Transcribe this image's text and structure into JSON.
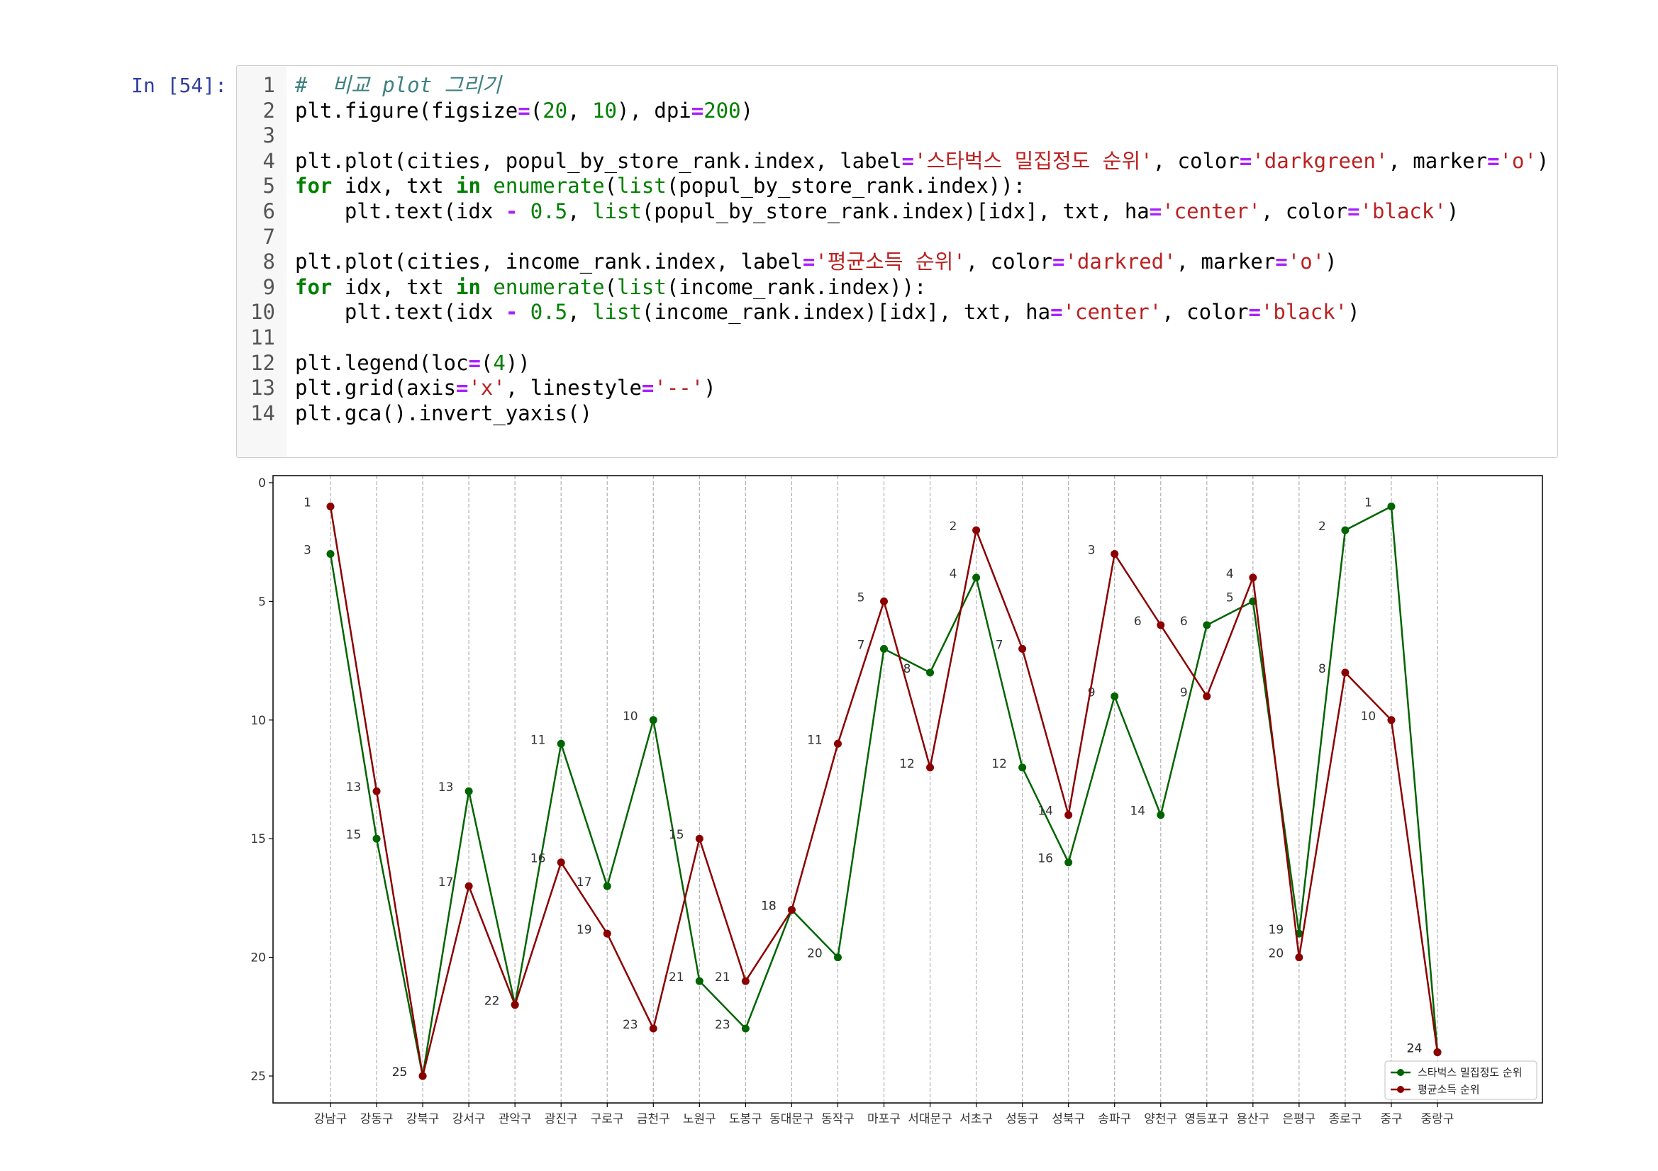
{
  "cell": {
    "prompt": "In [54]:",
    "lines": [
      [
        {
          "t": "#  비교 plot 그리기",
          "c": "cm"
        }
      ],
      [
        {
          "t": "plt.figure(figsize",
          "c": ""
        },
        {
          "t": "=",
          "c": "op"
        },
        {
          "t": "(",
          "c": ""
        },
        {
          "t": "20",
          "c": "nu"
        },
        {
          "t": ", ",
          "c": ""
        },
        {
          "t": "10",
          "c": "nu"
        },
        {
          "t": "), dpi",
          "c": ""
        },
        {
          "t": "=",
          "c": "op"
        },
        {
          "t": "200",
          "c": "nu"
        },
        {
          "t": ")",
          "c": ""
        }
      ],
      [],
      [
        {
          "t": "plt.plot(cities, popul_by_store_rank.index, label",
          "c": ""
        },
        {
          "t": "=",
          "c": "op"
        },
        {
          "t": "'스타벅스 밀집정도 순위'",
          "c": "st"
        },
        {
          "t": ", color",
          "c": ""
        },
        {
          "t": "=",
          "c": "op"
        },
        {
          "t": "'darkgreen'",
          "c": "st"
        },
        {
          "t": ", marker",
          "c": ""
        },
        {
          "t": "=",
          "c": "op"
        },
        {
          "t": "'o'",
          "c": "st"
        },
        {
          "t": ")",
          "c": ""
        }
      ],
      [
        {
          "t": "for",
          "c": "kw"
        },
        {
          "t": " idx, txt ",
          "c": ""
        },
        {
          "t": "in",
          "c": "kw"
        },
        {
          "t": " ",
          "c": ""
        },
        {
          "t": "enumerate",
          "c": "bi"
        },
        {
          "t": "(",
          "c": ""
        },
        {
          "t": "list",
          "c": "bi"
        },
        {
          "t": "(popul_by_store_rank.index)):",
          "c": ""
        }
      ],
      [
        {
          "t": "    plt.text(idx ",
          "c": ""
        },
        {
          "t": "-",
          "c": "op"
        },
        {
          "t": " ",
          "c": ""
        },
        {
          "t": "0.5",
          "c": "nu"
        },
        {
          "t": ", ",
          "c": ""
        },
        {
          "t": "list",
          "c": "bi"
        },
        {
          "t": "(popul_by_store_rank.index)[idx], txt, ha",
          "c": ""
        },
        {
          "t": "=",
          "c": "op"
        },
        {
          "t": "'center'",
          "c": "st"
        },
        {
          "t": ", color",
          "c": ""
        },
        {
          "t": "=",
          "c": "op"
        },
        {
          "t": "'black'",
          "c": "st"
        },
        {
          "t": ")",
          "c": ""
        }
      ],
      [],
      [
        {
          "t": "plt.plot(cities, income_rank.index, label",
          "c": ""
        },
        {
          "t": "=",
          "c": "op"
        },
        {
          "t": "'평균소득 순위'",
          "c": "st"
        },
        {
          "t": ", color",
          "c": ""
        },
        {
          "t": "=",
          "c": "op"
        },
        {
          "t": "'darkred'",
          "c": "st"
        },
        {
          "t": ", marker",
          "c": ""
        },
        {
          "t": "=",
          "c": "op"
        },
        {
          "t": "'o'",
          "c": "st"
        },
        {
          "t": ")",
          "c": ""
        }
      ],
      [
        {
          "t": "for",
          "c": "kw"
        },
        {
          "t": " idx, txt ",
          "c": ""
        },
        {
          "t": "in",
          "c": "kw"
        },
        {
          "t": " ",
          "c": ""
        },
        {
          "t": "enumerate",
          "c": "bi"
        },
        {
          "t": "(",
          "c": ""
        },
        {
          "t": "list",
          "c": "bi"
        },
        {
          "t": "(income_rank.index)):",
          "c": ""
        }
      ],
      [
        {
          "t": "    plt.text(idx ",
          "c": ""
        },
        {
          "t": "-",
          "c": "op"
        },
        {
          "t": " ",
          "c": ""
        },
        {
          "t": "0.5",
          "c": "nu"
        },
        {
          "t": ", ",
          "c": ""
        },
        {
          "t": "list",
          "c": "bi"
        },
        {
          "t": "(income_rank.index)[idx], txt, ha",
          "c": ""
        },
        {
          "t": "=",
          "c": "op"
        },
        {
          "t": "'center'",
          "c": "st"
        },
        {
          "t": ", color",
          "c": ""
        },
        {
          "t": "=",
          "c": "op"
        },
        {
          "t": "'black'",
          "c": "st"
        },
        {
          "t": ")",
          "c": ""
        }
      ],
      [],
      [
        {
          "t": "plt.legend(loc",
          "c": ""
        },
        {
          "t": "=",
          "c": "op"
        },
        {
          "t": "(",
          "c": ""
        },
        {
          "t": "4",
          "c": "nu"
        },
        {
          "t": "))",
          "c": ""
        }
      ],
      [
        {
          "t": "plt.grid(axis",
          "c": ""
        },
        {
          "t": "=",
          "c": "op"
        },
        {
          "t": "'x'",
          "c": "st"
        },
        {
          "t": ", linestyle",
          "c": ""
        },
        {
          "t": "=",
          "c": "op"
        },
        {
          "t": "'--'",
          "c": "st"
        },
        {
          "t": ")",
          "c": ""
        }
      ],
      [
        {
          "t": "plt.gca().invert_yaxis()",
          "c": ""
        }
      ]
    ]
  },
  "chart_data": {
    "type": "line",
    "categories": [
      "강남구",
      "강동구",
      "강북구",
      "강서구",
      "관악구",
      "광진구",
      "구로구",
      "금천구",
      "노원구",
      "도봉구",
      "동대문구",
      "동작구",
      "마포구",
      "서대문구",
      "서초구",
      "성동구",
      "성북구",
      "송파구",
      "양천구",
      "영등포구",
      "용산구",
      "은평구",
      "종로구",
      "중구",
      "중랑구"
    ],
    "series": [
      {
        "name": "스타벅스 밀집정도 순위",
        "color": "#006400",
        "values": [
          3,
          15,
          25,
          13,
          22,
          11,
          17,
          10,
          21,
          23,
          18,
          20,
          7,
          8,
          4,
          12,
          16,
          9,
          14,
          6,
          5,
          19,
          2,
          1,
          24
        ]
      },
      {
        "name": "평균소득 순위",
        "color": "#8b0000",
        "values": [
          1,
          13,
          25,
          17,
          22,
          16,
          19,
          23,
          15,
          21,
          18,
          11,
          5,
          12,
          2,
          7,
          14,
          3,
          6,
          9,
          4,
          20,
          8,
          10,
          24
        ]
      }
    ],
    "ylim": [
      25.5,
      0
    ],
    "yticks": [
      "0",
      "5",
      "10",
      "15",
      "20",
      "25"
    ],
    "grid": "x",
    "legend": "lower right",
    "inverted_y": true
  }
}
